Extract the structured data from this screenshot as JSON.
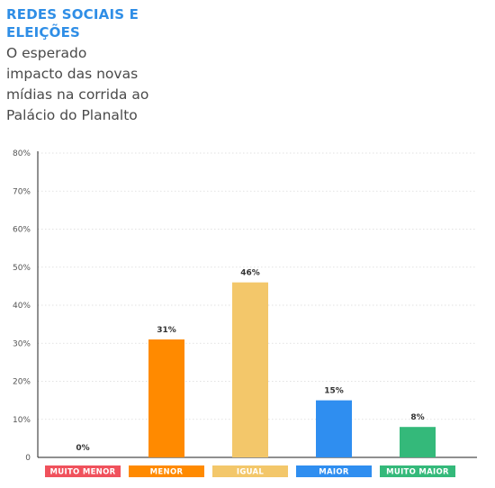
{
  "header": {
    "title_line1": "REDES SOCIAIS E",
    "title_line2": "ELEIÇÕES",
    "subtitle_lines": [
      "O esperado",
      "impacto das novas",
      "mídias na corrida ao",
      "Palácio do Planalto"
    ]
  },
  "chart_data": {
    "type": "bar",
    "title": "REDES SOCIAIS E ELEIÇÕES",
    "subtitle": "O esperado impacto das novas mídias na corrida ao Palácio do Planalto",
    "categories": [
      "MUITO MENOR",
      "MENOR",
      "IGUAL",
      "MAIOR",
      "MUITO MAIOR"
    ],
    "values": [
      0,
      31,
      46,
      15,
      8
    ],
    "value_labels": [
      "0%",
      "31%",
      "46%",
      "15%",
      "8%"
    ],
    "colors": [
      "#f0515c",
      "#ff8a00",
      "#f3c76a",
      "#2f8ef0",
      "#34b97a"
    ],
    "ylim": [
      0,
      80
    ],
    "yticks": [
      0,
      10,
      20,
      30,
      40,
      50,
      60,
      70,
      80
    ],
    "ytick_labels": [
      "0",
      "10%",
      "20%",
      "30%",
      "40%",
      "50%",
      "60%",
      "70%",
      "80%"
    ],
    "grid": true,
    "xlabel": "",
    "ylabel": ""
  }
}
